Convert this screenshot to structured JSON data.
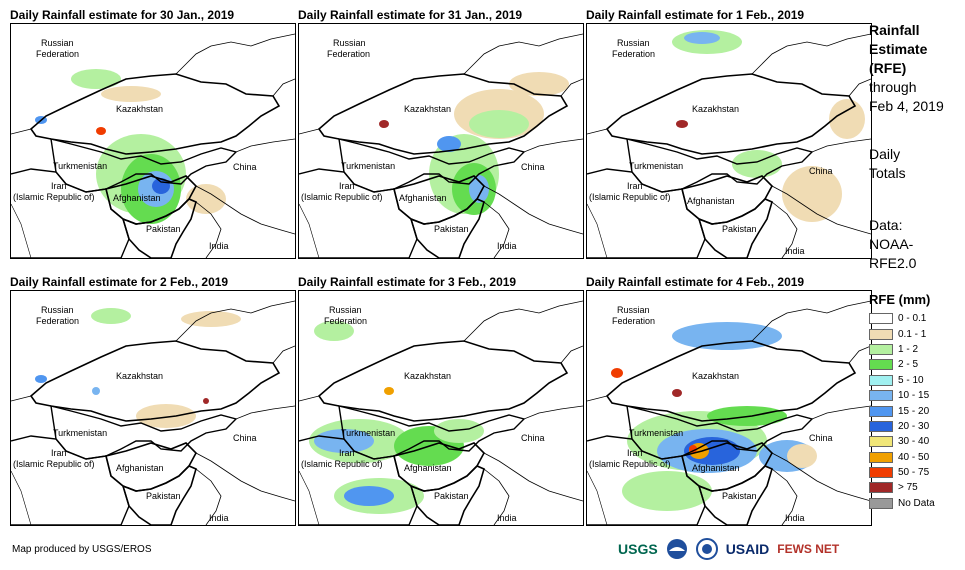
{
  "panels": [
    {
      "title": "Daily Rainfall estimate for 30 Jan., 2019"
    },
    {
      "title": "Daily Rainfall estimate for 31 Jan., 2019"
    },
    {
      "title": "Daily Rainfall estimate for 1 Feb., 2019"
    },
    {
      "title": "Daily Rainfall estimate for 2 Feb., 2019"
    },
    {
      "title": "Daily Rainfall estimate for 3 Feb., 2019"
    },
    {
      "title": "Daily Rainfall estimate for 4 Feb., 2019"
    }
  ],
  "map_labels": {
    "russia_1": "Russian",
    "russia_2": "Federation",
    "kazakhstan": "Kazakhstan",
    "turkmenistan": "Turkmenistan",
    "iran_1": "Iran",
    "iran_2": "(Islamic Republic of)",
    "afghanistan": "Afghanistan",
    "pakistan": "Pakistan",
    "china": "China",
    "india": "India"
  },
  "side_info": {
    "title_1": "Rainfall",
    "title_2": "Estimate",
    "title_3": "(RFE)",
    "through_1": "through",
    "through_2": "Feb 4, 2019",
    "daily_1": "Daily",
    "daily_2": "Totals",
    "data_1": "Data:",
    "data_2": "NOAA-",
    "data_3": "RFE2.0"
  },
  "legend": {
    "title": "RFE (mm)",
    "items": [
      {
        "label": "0 - 0.1",
        "color": "#ffffff"
      },
      {
        "label": "0.1 - 1",
        "color": "#f0dcb4"
      },
      {
        "label": "1 - 2",
        "color": "#b4f0a0"
      },
      {
        "label": "2 - 5",
        "color": "#64dc50"
      },
      {
        "label": "5 - 10",
        "color": "#a0f0f0"
      },
      {
        "label": "10 - 15",
        "color": "#78b4f0"
      },
      {
        "label": "15 - 20",
        "color": "#5096f0"
      },
      {
        "label": "20 - 30",
        "color": "#2864dc"
      },
      {
        "label": "30 - 40",
        "color": "#f0e678"
      },
      {
        "label": "40 - 50",
        "color": "#f0a000"
      },
      {
        "label": "50 - 75",
        "color": "#f03c00"
      },
      {
        "label": "> 75",
        "color": "#a02828"
      },
      {
        "label": "No Data",
        "color": "#999999"
      }
    ]
  },
  "credit": "Map produced by USGS/EROS",
  "logos": {
    "usgs": "USGS",
    "usaid": "USAID",
    "fewsnet": "FEWS NET"
  }
}
